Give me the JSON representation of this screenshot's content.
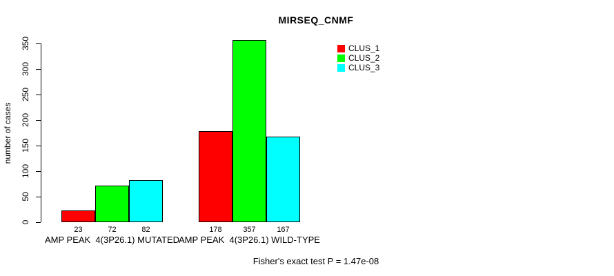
{
  "chart_data": {
    "type": "bar",
    "title": "MIRSEQ_CNMF",
    "xlabel": "",
    "ylabel": "number of cases",
    "ylim": [
      0,
      350
    ],
    "yticks": [
      0,
      50,
      100,
      150,
      200,
      250,
      300,
      350
    ],
    "grid": false,
    "legend_position": "top-right",
    "categories": [
      "AMP PEAK  4(3P26.1) MUTATED",
      "AMP PEAK  4(3P26.1) WILD-TYPE"
    ],
    "series": [
      {
        "name": "CLUS_1",
        "color": "#ff0000",
        "values": [
          23,
          178
        ]
      },
      {
        "name": "CLUS_2",
        "color": "#00ff00",
        "values": [
          72,
          357
        ]
      },
      {
        "name": "CLUS_3",
        "color": "#00ffff",
        "values": [
          82,
          167
        ]
      }
    ],
    "bar_value_labels": [
      [
        "23",
        "72",
        "82"
      ],
      [
        "178",
        "357",
        "167"
      ]
    ],
    "annotation": "Fisher's exact test P = 1.47e-08"
  },
  "colors": {
    "background": "#ffffff",
    "axis": "#000000",
    "bar_border": "#000000",
    "text": "#000000"
  }
}
